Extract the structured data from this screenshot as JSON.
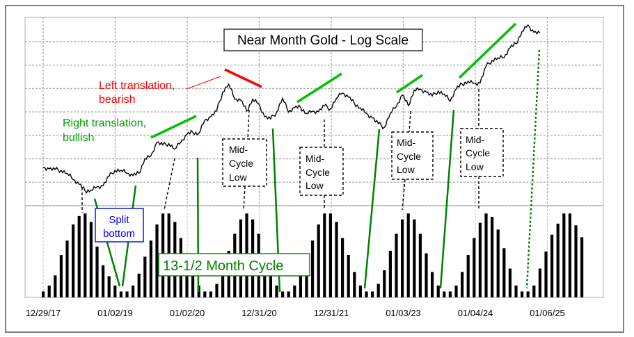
{
  "chart_data": {
    "type": "line+bar",
    "title": "Near Month Gold - Log Scale",
    "xlabel": "",
    "ylabel": "",
    "y_scale": "log",
    "ylim": [
      1150,
      2900
    ],
    "grid": true,
    "x_tick_labels": [
      "12/29/17",
      "01/02/19",
      "01/02/20",
      "12/31/20",
      "12/31/21",
      "01/03/23",
      "01/04/24",
      "01/06/25"
    ],
    "price_series": {
      "name": "Near Month Gold",
      "start": "2018-01",
      "frequency": "monthly",
      "values": [
        1340,
        1330,
        1325,
        1320,
        1300,
        1260,
        1230,
        1190,
        1195,
        1215,
        1220,
        1280,
        1320,
        1320,
        1300,
        1285,
        1300,
        1400,
        1420,
        1520,
        1500,
        1510,
        1470,
        1520,
        1580,
        1600,
        1590,
        1700,
        1730,
        1780,
        1960,
        2040,
        1890,
        1880,
        1780,
        1890,
        1850,
        1730,
        1710,
        1770,
        1900,
        1770,
        1810,
        1815,
        1760,
        1780,
        1775,
        1830,
        1800,
        1900,
        1950,
        1910,
        1850,
        1810,
        1760,
        1720,
        1670,
        1640,
        1760,
        1820,
        1930,
        1830,
        1980,
        1990,
        1960,
        1920,
        1970,
        1940,
        1870,
        1990,
        2040,
        2070,
        2050,
        2050,
        2230,
        2300,
        2330,
        2330,
        2450,
        2500,
        2660,
        2750,
        2650,
        2640
      ]
    },
    "cycle_series": {
      "name": "13-1/2 Month Cycle",
      "start": "2018-01",
      "frequency": "monthly",
      "scale": "relative 0-1",
      "values": [
        0.07,
        0.14,
        0.26,
        0.5,
        0.67,
        0.86,
        0.96,
        0.99,
        0.89,
        0.6,
        0.38,
        0.25,
        0.14,
        0.07,
        0.07,
        0.14,
        0.28,
        0.48,
        0.67,
        0.86,
        0.99,
        0.99,
        0.89,
        0.7,
        0.5,
        0.3,
        0.14,
        0.07,
        0.07,
        0.16,
        0.32,
        0.55,
        0.75,
        0.92,
        0.99,
        0.92,
        0.75,
        0.52,
        0.3,
        0.14,
        0.07,
        0.07,
        0.14,
        0.28,
        0.48,
        0.67,
        0.86,
        0.99,
        0.99,
        0.89,
        0.7,
        0.5,
        0.3,
        0.14,
        0.07,
        0.07,
        0.16,
        0.32,
        0.55,
        0.75,
        0.92,
        0.99,
        0.92,
        0.75,
        0.52,
        0.3,
        0.14,
        0.07,
        0.07,
        0.14,
        0.3,
        0.5,
        0.7,
        0.88,
        0.99,
        0.95,
        0.8,
        0.58,
        0.34,
        0.14,
        0.07,
        0.07,
        0.14,
        0.34,
        0.54,
        0.74,
        0.87,
        0.99,
        0.99,
        0.85,
        0.71
      ]
    },
    "annotations": {
      "left_translation": [
        "Left translation,",
        "bearish"
      ],
      "right_translation": [
        "Right translation,",
        "bullish"
      ],
      "split_bottom": [
        "Split",
        "bottom"
      ],
      "cycle_label": "13-1/2 Month Cycle",
      "mid_cycle_low": [
        "Mid-",
        "Cycle",
        "Low"
      ]
    },
    "colors": {
      "price": "#000000",
      "bars": "#000000",
      "bearish": "#ff0000",
      "bullish": "#00c000",
      "cycle": "#008000",
      "split": "#0000ff",
      "grid": "#b0b0b0"
    }
  }
}
